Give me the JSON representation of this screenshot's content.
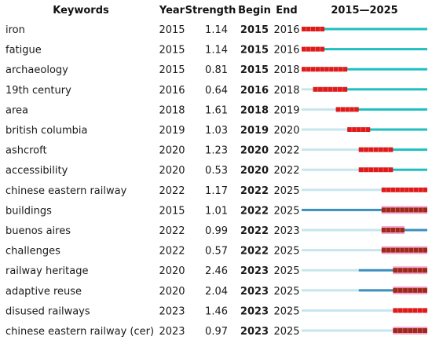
{
  "chart_data": {
    "type": "table",
    "columns": [
      "Keywords",
      "Year",
      "Strength",
      "Begin",
      "End",
      "2015—2025"
    ],
    "timeline": {
      "start": 2015,
      "end": 2025
    },
    "colors": {
      "burst": "#e01a1a",
      "burst_on_highlight": "#a0281a",
      "highlight": "#f4a6d0",
      "active": "#1fbfbf",
      "active_dark": "#3a8fc0",
      "inactive": "#c6e6ee"
    },
    "rows": [
      {
        "keyword": "iron",
        "year": "2015",
        "strength": "1.14",
        "begin": "2015",
        "end": "2016",
        "style": "plain"
      },
      {
        "keyword": "fatigue",
        "year": "2015",
        "strength": "1.14",
        "begin": "2015",
        "end": "2016",
        "style": "plain"
      },
      {
        "keyword": "archaeology",
        "year": "2015",
        "strength": "0.81",
        "begin": "2015",
        "end": "2018",
        "style": "plain"
      },
      {
        "keyword": "19th century",
        "year": "2016",
        "strength": "0.64",
        "begin": "2016",
        "end": "2018",
        "style": "plain"
      },
      {
        "keyword": "area",
        "year": "2018",
        "strength": "1.61",
        "begin": "2018",
        "end": "2019",
        "style": "plain"
      },
      {
        "keyword": "british columbia",
        "year": "2019",
        "strength": "1.03",
        "begin": "2019",
        "end": "2020",
        "style": "plain"
      },
      {
        "keyword": "ashcroft",
        "year": "2020",
        "strength": "1.23",
        "begin": "2020",
        "end": "2022",
        "style": "plain"
      },
      {
        "keyword": "accessibility",
        "year": "2020",
        "strength": "0.53",
        "begin": "2020",
        "end": "2022",
        "style": "plain"
      },
      {
        "keyword": "chinese eastern railway",
        "year": "2022",
        "strength": "1.17",
        "begin": "2022",
        "end": "2025",
        "style": "plain"
      },
      {
        "keyword": "buildings",
        "year": "2015",
        "strength": "1.01",
        "begin": "2022",
        "end": "2025",
        "style": "highlight"
      },
      {
        "keyword": "buenos aires",
        "year": "2022",
        "strength": "0.99",
        "begin": "2022",
        "end": "2023",
        "style": "highlight"
      },
      {
        "keyword": "challenges",
        "year": "2022",
        "strength": "0.57",
        "begin": "2022",
        "end": "2025",
        "style": "highlight"
      },
      {
        "keyword": "railway heritage",
        "year": "2020",
        "strength": "2.46",
        "begin": "2023",
        "end": "2025",
        "style": "highlight"
      },
      {
        "keyword": "adaptive reuse",
        "year": "2020",
        "strength": "2.04",
        "begin": "2023",
        "end": "2025",
        "style": "highlight"
      },
      {
        "keyword": "disused railways",
        "year": "2023",
        "strength": "1.46",
        "begin": "2023",
        "end": "2025",
        "style": "plain"
      },
      {
        "keyword": "chinese eastern railway (cer)",
        "year": "2023",
        "strength": "0.97",
        "begin": "2023",
        "end": "2025",
        "style": "highlight"
      }
    ]
  }
}
